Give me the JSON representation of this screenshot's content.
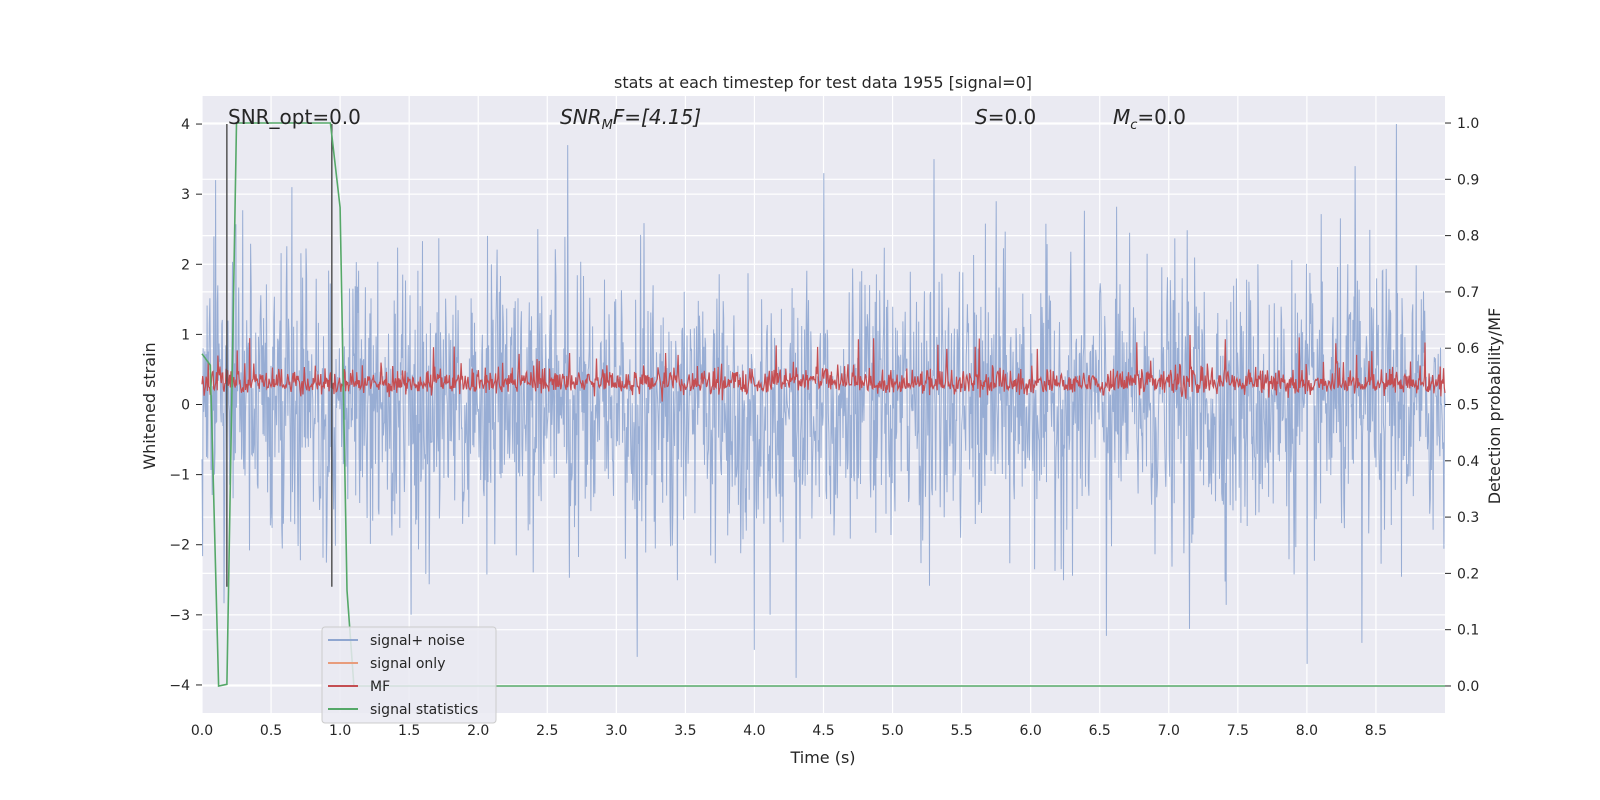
{
  "chart_data": {
    "type": "line",
    "title": "stats at each timestep for test data 1955 [signal=0]",
    "xlabel": "Time (s)",
    "ylabel": "Whitened strain",
    "ylabel_right": "Detection probability/MF",
    "xlim": [
      0.0,
      9.0
    ],
    "ylim": [
      -4.4,
      4.4
    ],
    "ylim_right": [
      -0.048,
      1.048
    ],
    "x_ticks": [
      "0.0",
      "0.5",
      "1.0",
      "1.5",
      "2.0",
      "2.5",
      "3.0",
      "3.5",
      "4.0",
      "4.5",
      "5.0",
      "5.5",
      "6.0",
      "6.5",
      "7.0",
      "7.5",
      "8.0",
      "8.5"
    ],
    "y_ticks": [
      "−4",
      "−3",
      "−2",
      "−1",
      "0",
      "1",
      "2",
      "3",
      "4"
    ],
    "y_ticks_right": [
      "0.0",
      "0.1",
      "0.2",
      "0.3",
      "0.4",
      "0.5",
      "0.6",
      "0.7",
      "0.8",
      "0.9",
      "1.0"
    ],
    "grid": true,
    "legend_position": "lower-left",
    "annotations": {
      "snr_opt": "SNR_opt=0.0",
      "snr_mf_main": "SNR",
      "snr_mf_sub": "M",
      "snr_mf_rest": "F=[4.15]",
      "s_main": "S",
      "s_rest": "=0.0",
      "mc_main": "M",
      "mc_sub": "c",
      "mc_rest": "=0.0"
    },
    "vertical_lines_x": [
      0.18,
      0.94
    ],
    "series": [
      {
        "name": "signal+ noise",
        "color": "#8fa6d0",
        "description_values": "white noise, roughly within [-3.9, 4.0]",
        "envelope_low": -1.6,
        "envelope_high": 1.6,
        "peaks": [
          [
            0.1,
            3.2
          ],
          [
            0.65,
            3.1
          ],
          [
            2.65,
            3.7
          ],
          [
            3.15,
            -3.6
          ],
          [
            4.0,
            -3.5
          ],
          [
            4.3,
            -3.9
          ],
          [
            4.5,
            3.3
          ],
          [
            5.3,
            3.5
          ],
          [
            8.0,
            -3.7
          ],
          [
            8.35,
            3.4
          ],
          [
            8.65,
            4.0
          ],
          [
            8.4,
            -3.4
          ],
          [
            6.55,
            -3.3
          ],
          [
            7.15,
            -3.2
          ],
          [
            5.75,
            2.9
          ]
        ]
      },
      {
        "name": "signal only",
        "color": "#e89c7c",
        "values": []
      },
      {
        "name": "MF",
        "color": "#c44e52",
        "range": [
          0.0,
          1.0
        ],
        "mean": 0.3
      },
      {
        "name": "signal statistics",
        "color": "#55a868",
        "x": [
          0.0,
          0.06,
          0.12,
          0.18,
          0.25,
          0.93,
          1.0,
          1.05,
          1.1,
          9.0
        ],
        "y": [
          0.59,
          0.57,
          0.0,
          0.003,
          1.0,
          1.0,
          0.85,
          0.17,
          0.0,
          0.0
        ]
      }
    ]
  }
}
